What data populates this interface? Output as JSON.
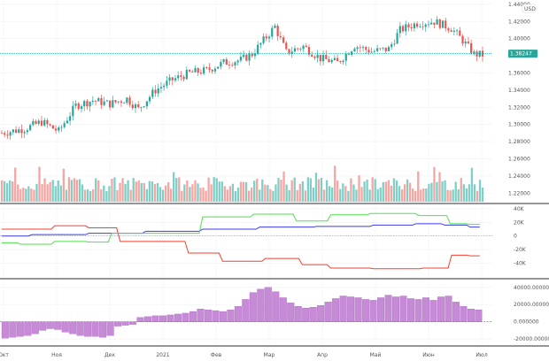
{
  "colors": {
    "up": "#26a69a",
    "down": "#ef5350",
    "vol_up": "#7fcfc7",
    "vol_down": "#f4a6a3",
    "price_line": "#26a69a",
    "cot_blue": "#3b3bf0",
    "cot_red": "#f04030",
    "cot_green": "#4ee04e",
    "hist": "#c68ad6",
    "zero": "#d0417a",
    "grid": "#eef0f5",
    "axis_text": "#555555"
  },
  "header": {
    "currency": "USD"
  },
  "chart_data": [
    {
      "type": "candlestick",
      "panel": "price",
      "price_axis_ticks": [
        "1.44000",
        "1.42000",
        "1.40000",
        "1.38000",
        "1.36000",
        "1.34000",
        "1.32000",
        "1.30000",
        "1.28000",
        "1.26000",
        "1.24000",
        "1.22000"
      ],
      "ylim": [
        1.21,
        1.445
      ],
      "last_price": "1.38247",
      "trend_path": [
        [
          0,
          1.29
        ],
        [
          8,
          1.295
        ],
        [
          14,
          1.303
        ],
        [
          20,
          1.292
        ],
        [
          26,
          1.322
        ],
        [
          32,
          1.328
        ],
        [
          38,
          1.324
        ],
        [
          44,
          1.33
        ],
        [
          48,
          1.318
        ],
        [
          54,
          1.34
        ],
        [
          60,
          1.352
        ],
        [
          66,
          1.36
        ],
        [
          72,
          1.363
        ],
        [
          78,
          1.372
        ],
        [
          84,
          1.375
        ],
        [
          88,
          1.382
        ],
        [
          92,
          1.398
        ],
        [
          96,
          1.414
        ],
        [
          100,
          1.384
        ],
        [
          106,
          1.391
        ],
        [
          112,
          1.377
        ],
        [
          118,
          1.372
        ],
        [
          124,
          1.392
        ],
        [
          130,
          1.385
        ],
        [
          136,
          1.388
        ],
        [
          140,
          1.41
        ],
        [
          146,
          1.418
        ],
        [
          152,
          1.42
        ],
        [
          158,
          1.412
        ],
        [
          162,
          1.398
        ],
        [
          166,
          1.382
        ],
        [
          169,
          1.381
        ]
      ],
      "volume_bars": 180
    },
    {
      "type": "line",
      "panel": "cot",
      "yaxis_ticks": [
        "40K",
        "20K",
        "0",
        "-20K",
        "-40K"
      ],
      "ylim": [
        -60000,
        45000
      ],
      "series": [
        {
          "key": "blue",
          "points": [
            [
              0,
              0
            ],
            [
              20,
              2000
            ],
            [
              40,
              4000
            ],
            [
              60,
              7000
            ],
            [
              80,
              10000
            ],
            [
              100,
              13000
            ],
            [
              120,
              14000
            ],
            [
              140,
              16000
            ],
            [
              150,
              18000
            ],
            [
              160,
              16000
            ],
            [
              168,
              13000
            ]
          ]
        },
        {
          "key": "red",
          "points": [
            [
              0,
              10000
            ],
            [
              12,
              10000
            ],
            [
              24,
              15000
            ],
            [
              36,
              12000
            ],
            [
              46,
              -8000
            ],
            [
              60,
              -8000
            ],
            [
              70,
              -25000
            ],
            [
              84,
              -37000
            ],
            [
              100,
              -33000
            ],
            [
              110,
              -42000
            ],
            [
              120,
              -47000
            ],
            [
              140,
              -48000
            ],
            [
              155,
              -47000
            ],
            [
              160,
              -28000
            ],
            [
              168,
              -29000
            ]
          ]
        },
        {
          "key": "green",
          "points": [
            [
              0,
              -10000
            ],
            [
              12,
              -12000
            ],
            [
              24,
              -8000
            ],
            [
              36,
              -9000
            ],
            [
              40,
              4000
            ],
            [
              60,
              4000
            ],
            [
              80,
              28000
            ],
            [
              96,
              32000
            ],
            [
              110,
              22000
            ],
            [
              120,
              31000
            ],
            [
              138,
              33000
            ],
            [
              154,
              30000
            ],
            [
              160,
              18000
            ],
            [
              168,
              17000
            ]
          ]
        }
      ]
    },
    {
      "type": "bar",
      "panel": "histogram",
      "yaxis_ticks": [
        "40000.000000",
        "20000.000000",
        "0.000000",
        "-20000.000000"
      ],
      "ylim": [
        -26000,
        48000
      ],
      "values": [
        -19000,
        -18000,
        -17000,
        -16000,
        -14000,
        -10000,
        -8000,
        -9000,
        -12000,
        -14000,
        -16000,
        -17000,
        -17000,
        -18000,
        -16000,
        -5000,
        -4000,
        -3000,
        5000,
        6000,
        7000,
        7000,
        8000,
        9000,
        10000,
        12000,
        15000,
        14000,
        13000,
        12000,
        14000,
        18000,
        26000,
        34000,
        38000,
        40000,
        35000,
        28000,
        22000,
        18000,
        16000,
        17000,
        19000,
        23000,
        27000,
        30000,
        29000,
        28000,
        26000,
        25000,
        28000,
        31000,
        29000,
        30000,
        27000,
        26000,
        28000,
        25000,
        29000,
        30000,
        23000,
        18000,
        15000,
        14000
      ]
    },
    {
      "type": "time_axis",
      "labels": [
        "Окт",
        "Ноя",
        "Дек",
        "2021",
        "Фев",
        "Мар",
        "Апр",
        "Май",
        "Июн",
        "Июл"
      ]
    }
  ]
}
